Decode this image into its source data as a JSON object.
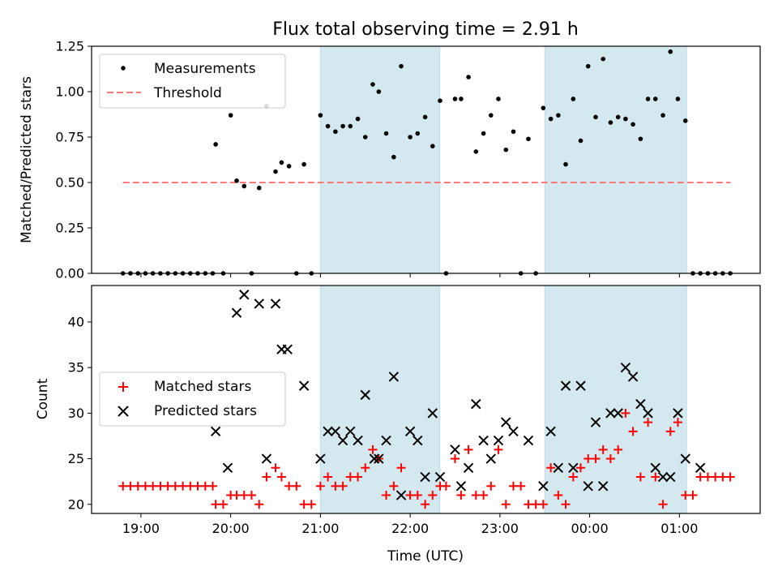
{
  "chart_data": [
    {
      "type": "scatter",
      "title": "Flux total observing time = 2.91 h",
      "xlabel": "",
      "ylabel": "Matched/Predicted stars",
      "xlim": [
        18.45,
        25.9
      ],
      "ylim": [
        0.0,
        1.25
      ],
      "yticks": [
        0.0,
        0.25,
        0.5,
        0.75,
        1.0,
        1.25
      ],
      "ytick_labels": [
        "0.00",
        "0.25",
        "0.50",
        "0.75",
        "1.00",
        "1.25"
      ],
      "grid": false,
      "legend_position": "top-left",
      "shaded_intervals": [
        [
          21.0,
          22.33
        ],
        [
          23.5,
          25.08
        ]
      ],
      "series": [
        {
          "name": "Measurements",
          "marker": "dot",
          "color": "#000000",
          "x": [
            18.8,
            18.883,
            18.967,
            19.05,
            19.133,
            19.217,
            19.3,
            19.383,
            19.467,
            19.55,
            19.633,
            19.717,
            19.8,
            19.833,
            19.917,
            20.0,
            20.067,
            20.15,
            20.233,
            20.317,
            20.4,
            20.5,
            20.567,
            20.65,
            20.733,
            20.817,
            20.9,
            21.0,
            21.083,
            21.167,
            21.25,
            21.333,
            21.417,
            21.5,
            21.583,
            21.65,
            21.733,
            21.817,
            21.9,
            22.0,
            22.083,
            22.167,
            22.25,
            22.333,
            22.4,
            22.5,
            22.567,
            22.65,
            22.733,
            22.817,
            22.9,
            22.983,
            23.067,
            23.15,
            23.233,
            23.317,
            23.4,
            23.483,
            23.567,
            23.65,
            23.733,
            23.817,
            23.9,
            23.983,
            24.067,
            24.15,
            24.233,
            24.317,
            24.4,
            24.483,
            24.567,
            24.65,
            24.733,
            24.817,
            24.9,
            24.983,
            25.067,
            25.15,
            25.233,
            25.317,
            25.4,
            25.483,
            25.567
          ],
          "y": [
            0,
            0,
            0,
            0,
            0,
            0,
            0,
            0,
            0,
            0,
            0,
            0,
            0,
            0.71,
            0,
            0.87,
            0.51,
            0.48,
            0,
            0.47,
            0.92,
            0.56,
            0.61,
            0.59,
            0,
            0.6,
            0,
            0.87,
            0.81,
            0.78,
            0.81,
            0.81,
            0.85,
            0.75,
            1.04,
            1.0,
            0.77,
            0.64,
            1.14,
            0.75,
            0.77,
            0.86,
            0.7,
            0.95,
            0,
            0.96,
            0.96,
            1.08,
            0.67,
            0.77,
            0.87,
            0.96,
            0.68,
            0.78,
            0,
            0.74,
            0,
            0.91,
            0.85,
            0.87,
            0.6,
            0.96,
            0.73,
            1.14,
            0.86,
            1.18,
            0.83,
            0.86,
            0.85,
            0.82,
            0.74,
            0.96,
            0.96,
            0.87,
            1.22,
            0.96,
            0.84,
            0,
            0,
            0,
            0,
            0,
            0
          ]
        },
        {
          "name": "Threshold",
          "marker": "dashed-line",
          "color": "#ff7a7a",
          "x": [
            18.8,
            25.57
          ],
          "y": [
            0.5,
            0.5
          ]
        }
      ]
    },
    {
      "type": "scatter",
      "title": "",
      "xlabel": "Time (UTC)",
      "ylabel": "Count",
      "xlim": [
        18.45,
        25.9
      ],
      "ylim": [
        19,
        44
      ],
      "yticks": [
        20,
        25,
        30,
        35,
        40
      ],
      "ytick_labels": [
        "20",
        "25",
        "30",
        "35",
        "40"
      ],
      "xticks": [
        19,
        20,
        21,
        22,
        23,
        24,
        25
      ],
      "xtick_labels": [
        "19:00",
        "20:00",
        "21:00",
        "22:00",
        "23:00",
        "00:00",
        "01:00"
      ],
      "grid": false,
      "legend_position": "center-left",
      "shaded_intervals": [
        [
          21.0,
          22.33
        ],
        [
          23.5,
          25.08
        ]
      ],
      "series": [
        {
          "name": "Matched stars",
          "marker": "plus",
          "color": "#ff0000",
          "x": [
            18.8,
            18.883,
            18.967,
            19.05,
            19.133,
            19.217,
            19.3,
            19.383,
            19.467,
            19.55,
            19.633,
            19.717,
            19.8,
            19.833,
            19.917,
            20.0,
            20.067,
            20.15,
            20.233,
            20.317,
            20.4,
            20.5,
            20.567,
            20.65,
            20.733,
            20.817,
            20.9,
            21.0,
            21.083,
            21.167,
            21.25,
            21.333,
            21.417,
            21.5,
            21.583,
            21.65,
            21.733,
            21.817,
            21.9,
            22.0,
            22.083,
            22.167,
            22.25,
            22.333,
            22.4,
            22.5,
            22.567,
            22.65,
            22.733,
            22.817,
            22.9,
            22.983,
            23.067,
            23.15,
            23.233,
            23.317,
            23.4,
            23.483,
            23.567,
            23.65,
            23.733,
            23.817,
            23.9,
            23.983,
            24.067,
            24.15,
            24.233,
            24.317,
            24.4,
            24.483,
            24.567,
            24.65,
            24.733,
            24.817,
            24.9,
            24.983,
            25.067,
            25.15,
            25.233,
            25.317,
            25.4,
            25.483,
            25.567
          ],
          "y": [
            22,
            22,
            22,
            22,
            22,
            22,
            22,
            22,
            22,
            22,
            22,
            22,
            22,
            20,
            20,
            21,
            21,
            21,
            21,
            20,
            23,
            24,
            23,
            22,
            22,
            20,
            20,
            22,
            23,
            22,
            22,
            23,
            23,
            24,
            26,
            25,
            21,
            22,
            24,
            21,
            21,
            20,
            21,
            22,
            22,
            25,
            21,
            26,
            21,
            21,
            22,
            26,
            20,
            22,
            22,
            20,
            20,
            20,
            24,
            21,
            20,
            23,
            24,
            25,
            25,
            26,
            25,
            26,
            30,
            28,
            23,
            29,
            23,
            20,
            28,
            29,
            21,
            21,
            23,
            23,
            23,
            23,
            23
          ]
        },
        {
          "name": "Predicted stars",
          "marker": "x",
          "color": "#000000",
          "x": [
            19.833,
            19.967,
            20.067,
            20.15,
            20.317,
            20.4,
            20.5,
            20.567,
            20.633,
            20.817,
            21.0,
            21.083,
            21.167,
            21.25,
            21.333,
            21.417,
            21.5,
            21.6,
            21.65,
            21.733,
            21.817,
            21.9,
            22.0,
            22.083,
            22.167,
            22.25,
            22.333,
            22.5,
            22.567,
            22.65,
            22.733,
            22.817,
            22.9,
            22.983,
            23.067,
            23.15,
            23.317,
            23.483,
            23.567,
            23.65,
            23.733,
            23.817,
            23.9,
            23.983,
            24.067,
            24.15,
            24.233,
            24.317,
            24.4,
            24.483,
            24.567,
            24.65,
            24.733,
            24.817,
            24.9,
            24.983,
            25.067,
            25.233
          ],
          "y": [
            28,
            24,
            41,
            43,
            42,
            25,
            42,
            37,
            37,
            33,
            25,
            28,
            28,
            27,
            28,
            27,
            32,
            25,
            25,
            27,
            34,
            21,
            28,
            27,
            23,
            30,
            23,
            26,
            22,
            24,
            31,
            27,
            25,
            27,
            29,
            28,
            27,
            22,
            28,
            24,
            33,
            24,
            33,
            22,
            29,
            22,
            30,
            30,
            35,
            34,
            31,
            30,
            24,
            23,
            23,
            30,
            25,
            24
          ]
        }
      ]
    }
  ],
  "colors": {
    "shade": "#d3e9ef",
    "threshold": "#ff7a7a",
    "matched": "#ff0000",
    "predicted": "#000000"
  }
}
